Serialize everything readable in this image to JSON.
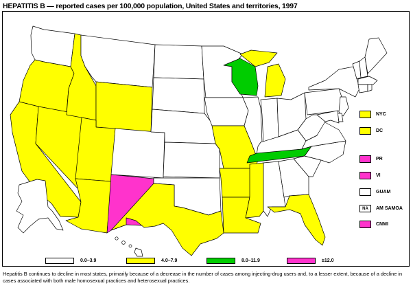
{
  "title": "HEPATITIS B — reported cases per 100,000 population, United States and territories, 1997",
  "colors": {
    "c0": "#ffffff",
    "c1": "#ffff00",
    "c2": "#00cc00",
    "c3": "#ff33cc",
    "stroke": "#000000"
  },
  "legend": [
    {
      "label": "0.0–3.9",
      "color": "#ffffff"
    },
    {
      "label": "4.0–7.9",
      "color": "#ffff00"
    },
    {
      "label": "8.0–11.9",
      "color": "#00cc00"
    },
    {
      "label": "≥12.0",
      "color": "#ff33cc"
    }
  ],
  "territories": [
    {
      "label": "NYC",
      "color": "#ffff00",
      "mark": ""
    },
    {
      "label": "DC",
      "color": "#ffff00",
      "mark": ""
    },
    {
      "label": "PR",
      "color": "#ff33cc",
      "mark": ""
    },
    {
      "label": "VI",
      "color": "#ff33cc",
      "mark": ""
    },
    {
      "label": "GUAM",
      "color": "#ffffff",
      "mark": ""
    },
    {
      "label": "AM SAMOA",
      "color": "#ffffff",
      "mark": "NA"
    },
    {
      "label": "CNMI",
      "color": "#ff33cc",
      "mark": ""
    }
  ],
  "states": [
    {
      "abbr": "WA",
      "category": 0
    },
    {
      "abbr": "OR",
      "category": 1
    },
    {
      "abbr": "CA",
      "category": 1
    },
    {
      "abbr": "NV",
      "category": 1
    },
    {
      "abbr": "ID",
      "category": 1
    },
    {
      "abbr": "MT",
      "category": 0
    },
    {
      "abbr": "WY",
      "category": 1
    },
    {
      "abbr": "UT",
      "category": 1
    },
    {
      "abbr": "AZ",
      "category": 1
    },
    {
      "abbr": "CO",
      "category": 0
    },
    {
      "abbr": "NM",
      "category": 3
    },
    {
      "abbr": "ND",
      "category": 0
    },
    {
      "abbr": "SD",
      "category": 0
    },
    {
      "abbr": "NE",
      "category": 0
    },
    {
      "abbr": "KS",
      "category": 0
    },
    {
      "abbr": "OK",
      "category": 0
    },
    {
      "abbr": "TX",
      "category": 1
    },
    {
      "abbr": "MN",
      "category": 0
    },
    {
      "abbr": "IA",
      "category": 0
    },
    {
      "abbr": "MO",
      "category": 1
    },
    {
      "abbr": "AR",
      "category": 1
    },
    {
      "abbr": "LA",
      "category": 1
    },
    {
      "abbr": "WI",
      "category": 2
    },
    {
      "abbr": "IL",
      "category": 0
    },
    {
      "abbr": "MI",
      "category": 1
    },
    {
      "abbr": "IN",
      "category": 0
    },
    {
      "abbr": "OH",
      "category": 0
    },
    {
      "abbr": "KY",
      "category": 0
    },
    {
      "abbr": "TN",
      "category": 2
    },
    {
      "abbr": "MS",
      "category": 1
    },
    {
      "abbr": "AL",
      "category": 0
    },
    {
      "abbr": "GA",
      "category": 0
    },
    {
      "abbr": "FL",
      "category": 1
    },
    {
      "abbr": "SC",
      "category": 0
    },
    {
      "abbr": "NC",
      "category": 0
    },
    {
      "abbr": "VA",
      "category": 0
    },
    {
      "abbr": "WV",
      "category": 0
    },
    {
      "abbr": "PA",
      "category": 0
    },
    {
      "abbr": "NY",
      "category": 0
    },
    {
      "abbr": "VT",
      "category": 0
    },
    {
      "abbr": "NH",
      "category": 0
    },
    {
      "abbr": "ME",
      "category": 0
    },
    {
      "abbr": "MA",
      "category": 0
    },
    {
      "abbr": "CT",
      "category": 0
    },
    {
      "abbr": "RI",
      "category": 0
    },
    {
      "abbr": "NJ",
      "category": 0
    },
    {
      "abbr": "DE",
      "category": 0
    },
    {
      "abbr": "MD",
      "category": 0
    },
    {
      "abbr": "AK",
      "category": 0
    },
    {
      "abbr": "HI",
      "category": 0
    }
  ],
  "footnote": "Hepatitis B continues to decline in most states, primarily because of a decrease in the number of cases among injecting-drug users and, to a lesser extent, because of a decline in cases associated with both male homosexual practices and heterosexual practices."
}
